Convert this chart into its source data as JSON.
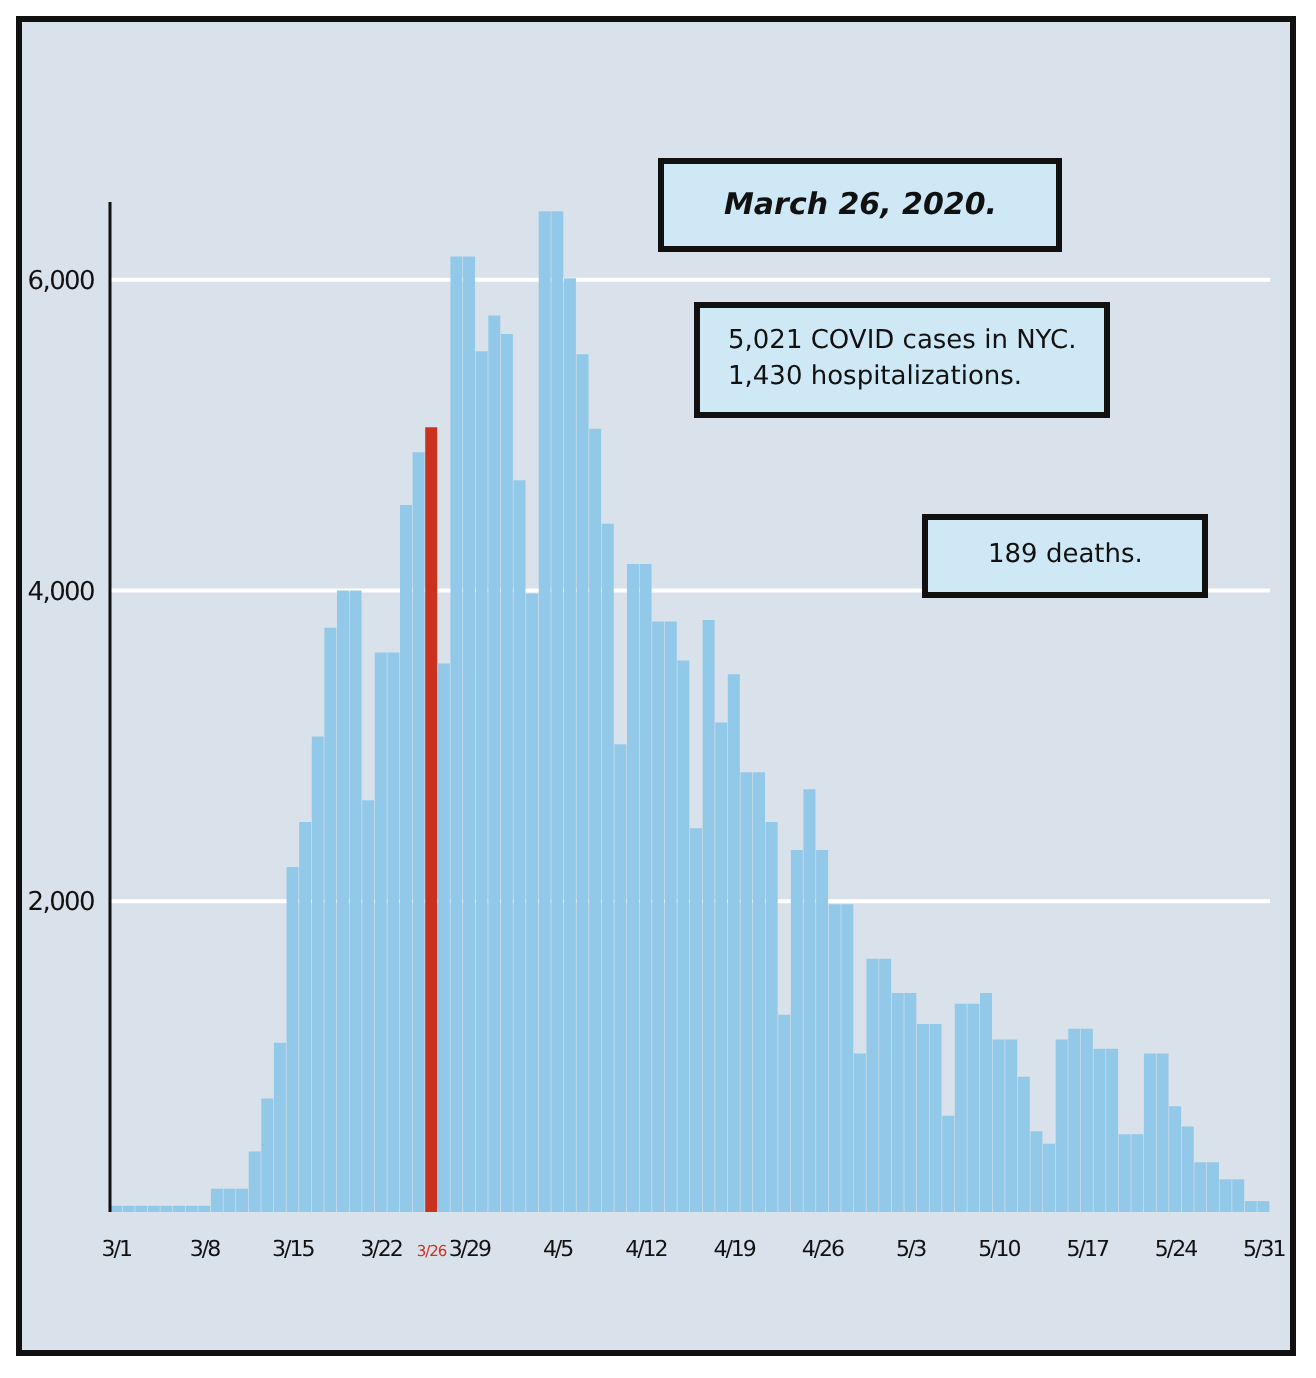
{
  "chart_data": {
    "type": "bar",
    "categories": [
      "3/1",
      null,
      null,
      null,
      null,
      null,
      null,
      "3/8",
      null,
      null,
      null,
      null,
      null,
      null,
      "3/15",
      null,
      null,
      null,
      null,
      null,
      null,
      "3/22",
      null,
      null,
      null,
      "3/26",
      null,
      null,
      "3/29",
      null,
      null,
      null,
      null,
      null,
      null,
      "4/5",
      null,
      null,
      null,
      null,
      null,
      null,
      "4/12",
      null,
      null,
      null,
      null,
      null,
      null,
      "4/19",
      null,
      null,
      null,
      null,
      null,
      null,
      "4/26",
      null,
      null,
      null,
      null,
      null,
      null,
      "5/3",
      null,
      null,
      null,
      null,
      null,
      null,
      "5/10",
      null,
      null,
      null,
      null,
      null,
      null,
      "5/17",
      null,
      null,
      null,
      null,
      null,
      null,
      "5/24",
      null,
      null,
      null,
      null,
      null,
      null,
      "5/31"
    ],
    "values": [
      40,
      40,
      40,
      40,
      40,
      40,
      40,
      40,
      150,
      150,
      150,
      390,
      730,
      1090,
      2220,
      2510,
      3060,
      3760,
      4000,
      4000,
      2650,
      3600,
      3600,
      4550,
      4890,
      5050,
      3530,
      6150,
      6150,
      5540,
      5770,
      5650,
      4710,
      3980,
      6440,
      6440,
      6010,
      5520,
      5040,
      4430,
      3010,
      4170,
      4170,
      3800,
      3800,
      3550,
      2470,
      3810,
      3150,
      3460,
      2830,
      2830,
      2510,
      1270,
      2330,
      2720,
      2330,
      1980,
      1980,
      1020,
      1630,
      1630,
      1410,
      1410,
      1210,
      1210,
      620,
      1340,
      1340,
      1410,
      1110,
      1110,
      870,
      520,
      440,
      1110,
      1180,
      1180,
      1050,
      1050,
      500,
      500,
      1020,
      1020,
      680,
      550,
      320,
      320,
      210,
      210,
      70,
      70
    ],
    "color": "#93c9e8",
    "colors": [
      "#93c9e8",
      "#93c9e8",
      "#93c9e8",
      "#93c9e8",
      "#93c9e8",
      "#93c9e8",
      "#93c9e8",
      "#93c9e8",
      "#93c9e8",
      "#93c9e8",
      "#93c9e8",
      "#93c9e8",
      "#93c9e8",
      "#93c9e8",
      "#93c9e8",
      "#93c9e8",
      "#93c9e8",
      "#93c9e8",
      "#93c9e8",
      "#93c9e8",
      "#93c9e8",
      "#93c9e8",
      "#93c9e8",
      "#93c9e8",
      "#93c9e8",
      "#c8321e",
      "#93c9e8",
      "#93c9e8",
      "#93c9e8",
      "#93c9e8",
      "#93c9e8",
      "#93c9e8",
      "#93c9e8",
      "#93c9e8",
      "#93c9e8",
      "#93c9e8",
      "#93c9e8",
      "#93c9e8",
      "#93c9e8",
      "#93c9e8",
      "#93c9e8",
      "#93c9e8",
      "#93c9e8",
      "#93c9e8",
      "#93c9e8",
      "#93c9e8",
      "#93c9e8",
      "#93c9e8",
      "#93c9e8",
      "#93c9e8",
      "#93c9e8",
      "#93c9e8",
      "#93c9e8",
      "#93c9e8",
      "#93c9e8",
      "#93c9e8",
      "#93c9e8",
      "#93c9e8",
      "#93c9e8",
      "#93c9e8",
      "#93c9e8",
      "#93c9e8",
      "#93c9e8",
      "#93c9e8",
      "#93c9e8",
      "#93c9e8",
      "#93c9e8",
      "#93c9e8",
      "#93c9e8",
      "#93c9e8",
      "#93c9e8",
      "#93c9e8",
      "#93c9e8",
      "#93c9e8",
      "#93c9e8",
      "#93c9e8",
      "#93c9e8",
      "#93c9e8",
      "#93c9e8",
      "#93c9e8",
      "#93c9e8",
      "#93c9e8",
      "#93c9e8",
      "#93c9e8",
      "#93c9e8",
      "#93c9e8",
      "#93c9e8",
      "#93c9e8",
      "#93c9e8",
      "#93c9e8",
      "#93c9e8",
      "#93c9e8"
    ],
    "ylim": [
      0,
      6500
    ],
    "yticks": [
      {
        "value": 2000,
        "label": "2,000"
      },
      {
        "value": 4000,
        "label": "4,000"
      },
      {
        "value": 6000,
        "label": "6,000"
      }
    ],
    "grid": "y",
    "annotations": [
      "March 26, 2020.",
      "5,021 COVID cases in NYC.\n1,430 hospitalizations.",
      "189 deaths."
    ]
  }
}
